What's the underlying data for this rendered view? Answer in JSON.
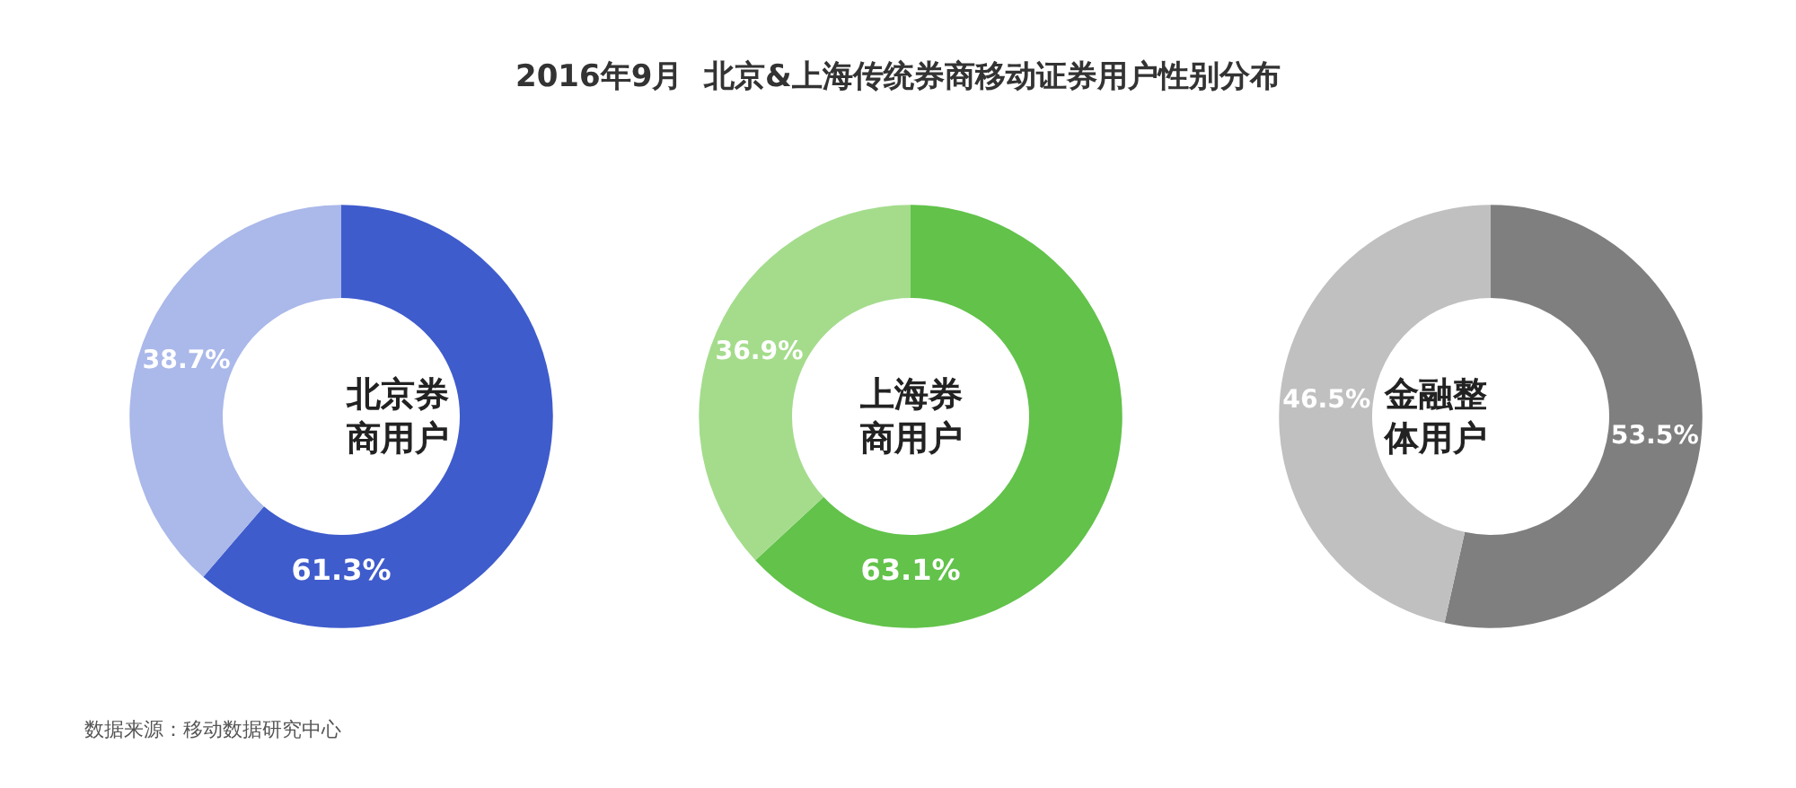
{
  "chart_data": [
    {
      "type": "donut",
      "title": "北京券商用户",
      "categories": [
        null,
        null
      ],
      "values": [
        61.3,
        38.7
      ],
      "colors": [
        "#3f5ccc",
        "#aab8ea"
      ],
      "value_labels": [
        "61.3%",
        "38.7%"
      ],
      "annotations": [
        "2016年9月  北京&上海传统券商移动证券用户性别分布",
        "数据来源：移动数据研究中心"
      ]
    },
    {
      "type": "donut",
      "title": "上海券商用户",
      "categories": [
        null,
        null
      ],
      "values": [
        63.1,
        36.9
      ],
      "colors": [
        "#62c24a",
        "#a4dc8c"
      ],
      "value_labels": [
        "63.1%",
        "36.9%"
      ]
    },
    {
      "type": "donut",
      "title": "金融整体用户",
      "categories": [
        null,
        null
      ],
      "values": [
        53.5,
        46.5
      ],
      "colors": [
        "#7f7f7f",
        "#c0c0c0"
      ],
      "value_labels": [
        "53.5%",
        "46.5%"
      ]
    }
  ]
}
